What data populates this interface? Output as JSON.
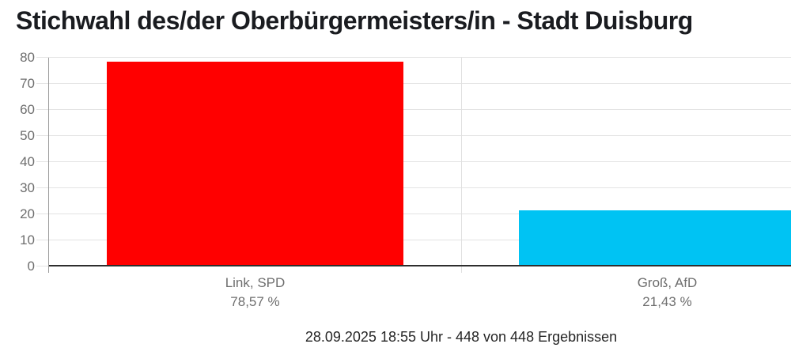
{
  "title": "Stichwahl des/der Oberbürgermeisters/in - Stadt Duisburg",
  "footer": "28.09.2025 18:55 Uhr - 448 von 448 Ergebnissen",
  "chart_data": {
    "type": "bar",
    "title": "Stichwahl des/der Oberbürgermeisters/in - Stadt Duisburg",
    "categories": [
      "Link, SPD",
      "Groß, AfD"
    ],
    "values": [
      78.57,
      21.43
    ],
    "value_labels": [
      "78,57 %",
      "21,43 %"
    ],
    "bar_colors": [
      "#ff0000",
      "#00c3f3"
    ],
    "ylim": [
      0,
      80
    ],
    "yticks": [
      0,
      10,
      20,
      30,
      40,
      50,
      60,
      70,
      80
    ],
    "grid": true,
    "legend": "none",
    "footnote": "28.09.2025 18:55 Uhr - 448 von 448 Ergebnissen"
  },
  "colors": {
    "bar_spd": "#ff0000",
    "bar_afd": "#00c3f3",
    "gridline": "#e3e3e3",
    "axis": "#2e2e2e",
    "tick_text": "#6e6e6e",
    "title_text": "#1a1c20"
  }
}
